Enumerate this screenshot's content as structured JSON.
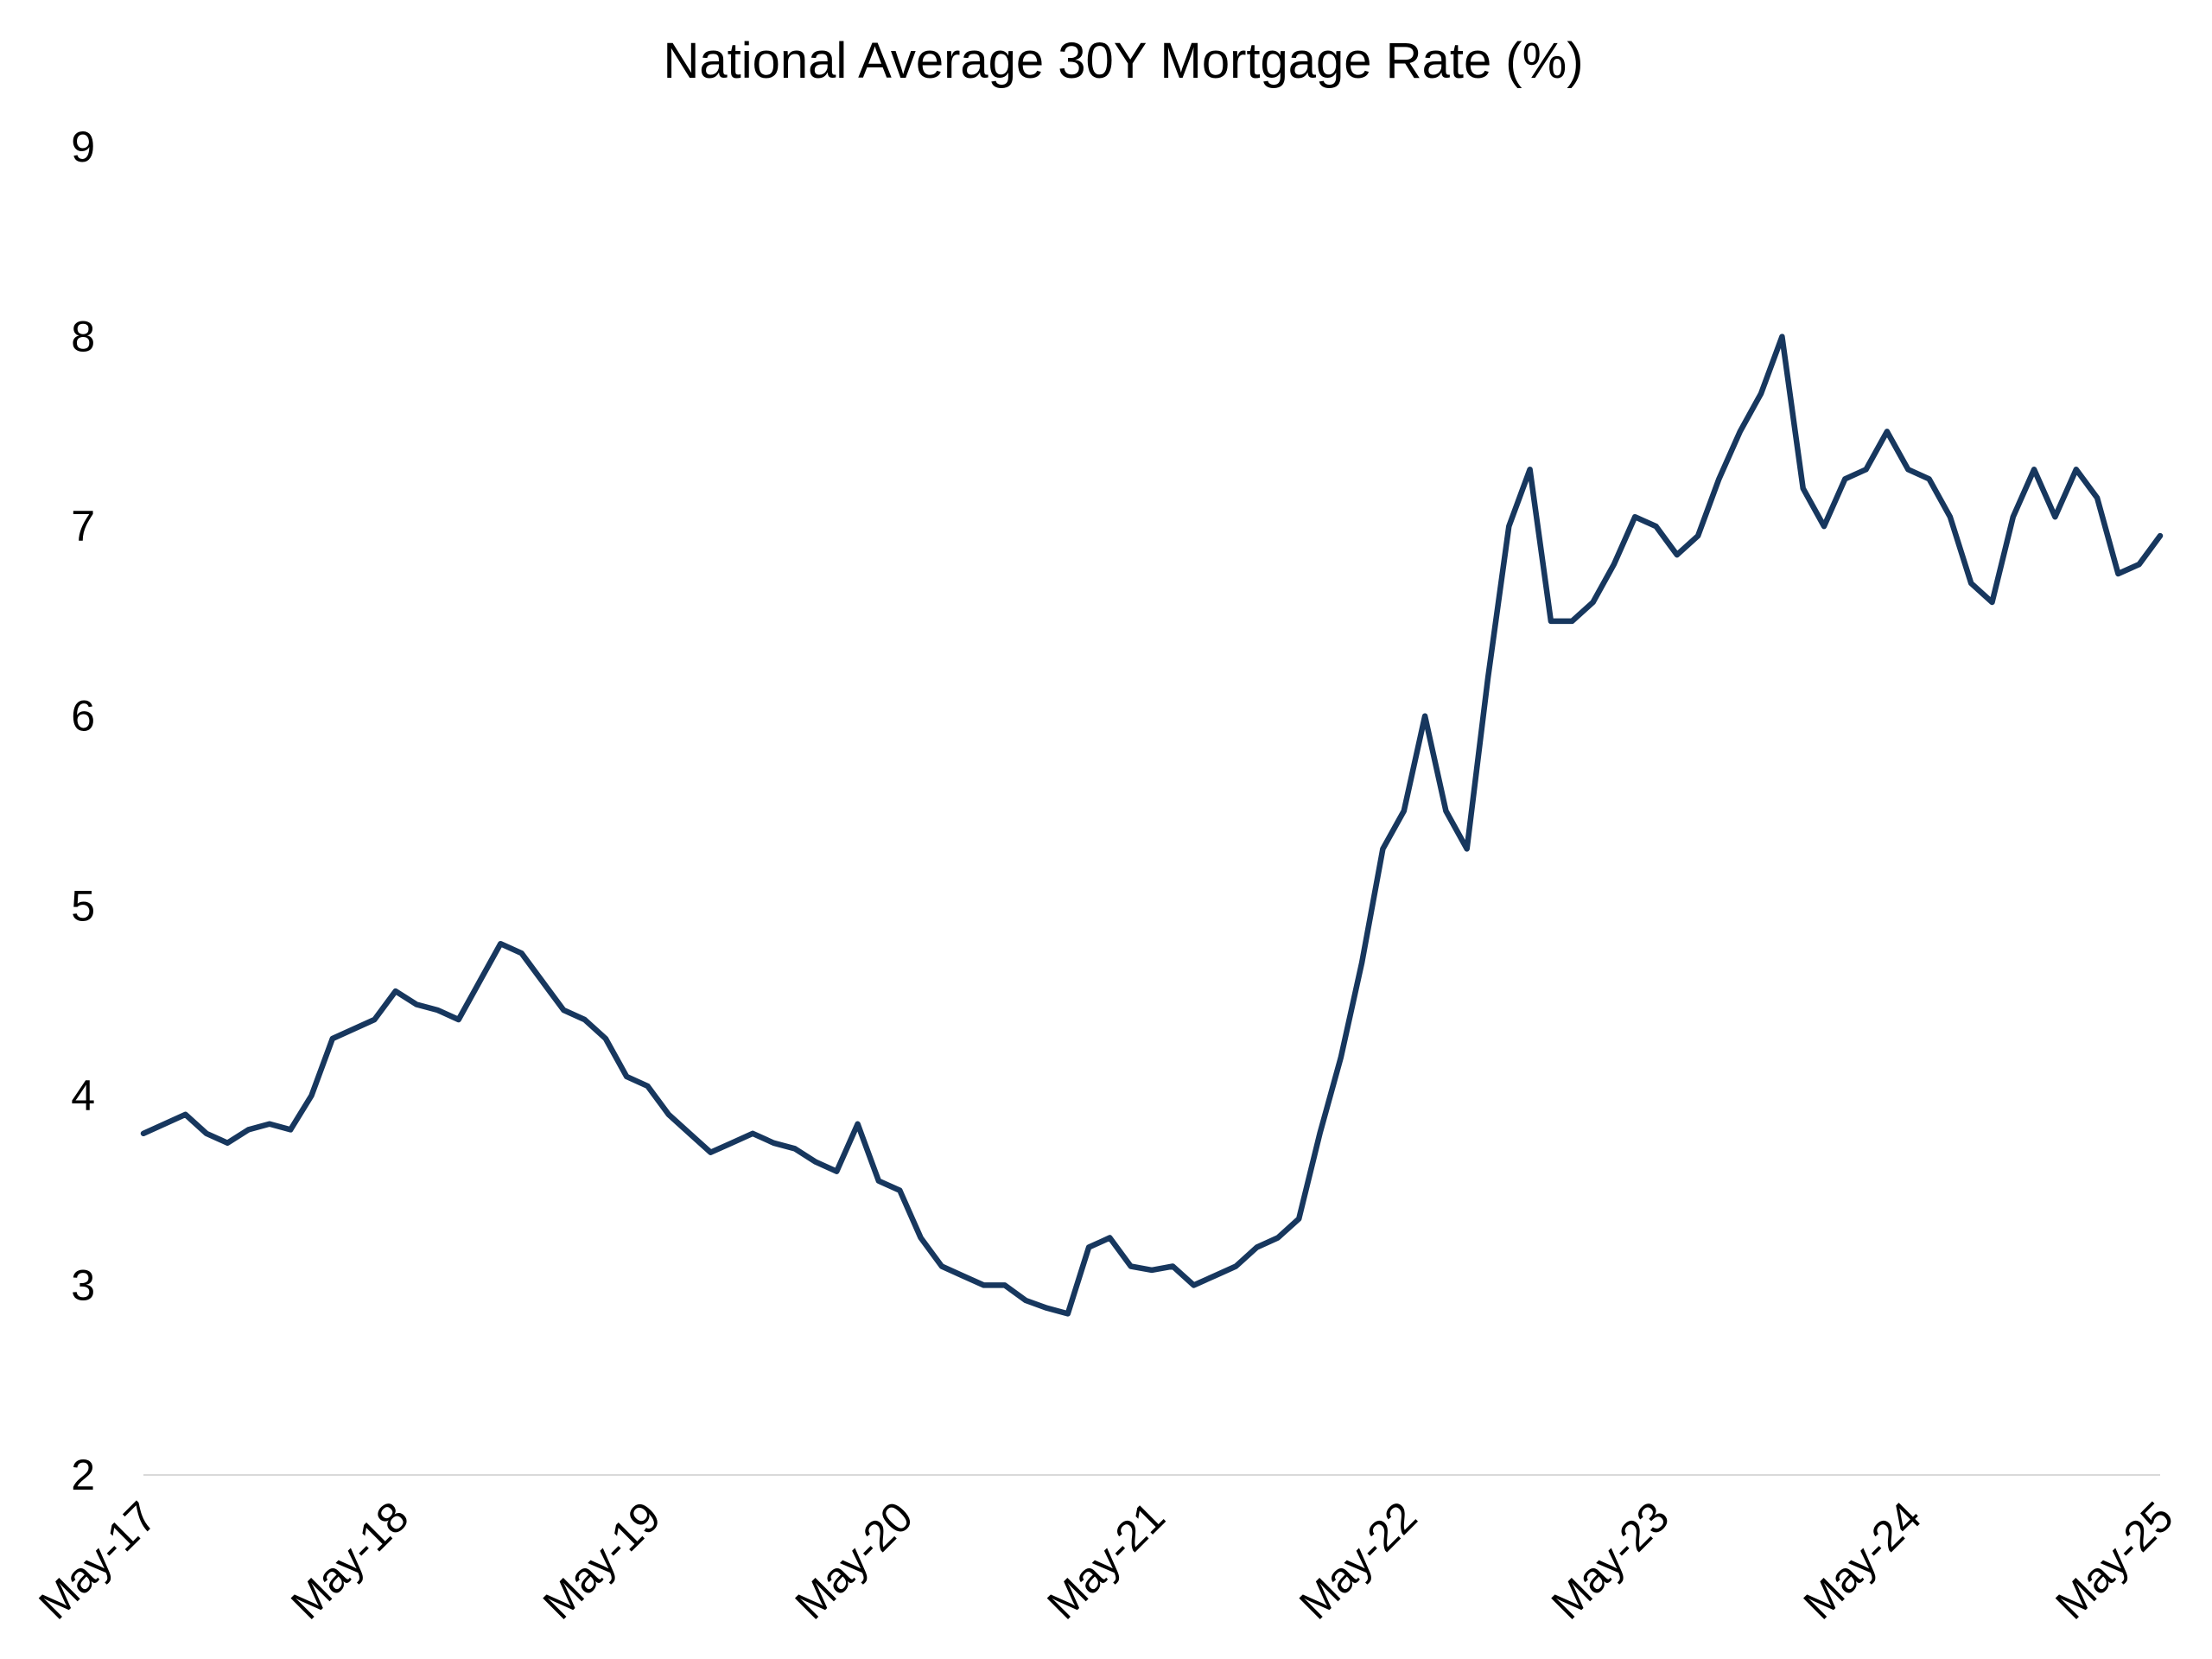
{
  "chart_data": {
    "type": "line",
    "title": "National Average 30Y Mortgage Rate (%)",
    "xlabel": "",
    "ylabel": "",
    "ylim": [
      2,
      9
    ],
    "yticks": [
      2,
      3,
      4,
      5,
      6,
      7,
      8,
      9
    ],
    "xlim": [
      "2017-05",
      "2025-05"
    ],
    "xticks": [
      "May-17",
      "May-18",
      "May-19",
      "May-20",
      "May-21",
      "May-22",
      "May-23",
      "May-24",
      "May-25"
    ],
    "grid": false,
    "legend": "none",
    "line_color": "#17375e",
    "series": [
      {
        "x": [
          "2017-05",
          "2017-06",
          "2017-07",
          "2017-08",
          "2017-09",
          "2017-10",
          "2017-11",
          "2017-12",
          "2018-01",
          "2018-02",
          "2018-03",
          "2018-04",
          "2018-05",
          "2018-06",
          "2018-07",
          "2018-08",
          "2018-09",
          "2018-10",
          "2018-11",
          "2018-12",
          "2019-01",
          "2019-02",
          "2019-03",
          "2019-04",
          "2019-05",
          "2019-06",
          "2019-07",
          "2019-08",
          "2019-09",
          "2019-10",
          "2019-11",
          "2019-12",
          "2020-01",
          "2020-02",
          "2020-03",
          "2020-04",
          "2020-05",
          "2020-06",
          "2020-07",
          "2020-08",
          "2020-09",
          "2020-10",
          "2020-11",
          "2020-12",
          "2021-01",
          "2021-02",
          "2021-03",
          "2021-04",
          "2021-05",
          "2021-06",
          "2021-07",
          "2021-08",
          "2021-09",
          "2021-10",
          "2021-11",
          "2021-12",
          "2022-01",
          "2022-02",
          "2022-03",
          "2022-04",
          "2022-05",
          "2022-06",
          "2022-07",
          "2022-08",
          "2022-09",
          "2022-10",
          "2022-11",
          "2022-12",
          "2023-01",
          "2023-02",
          "2023-03",
          "2023-04",
          "2023-05",
          "2023-06",
          "2023-07",
          "2023-08",
          "2023-09",
          "2023-10",
          "2023-11",
          "2023-12",
          "2024-01",
          "2024-02",
          "2024-03",
          "2024-04",
          "2024-05",
          "2024-06",
          "2024-07",
          "2024-08",
          "2024-09",
          "2024-10",
          "2024-11",
          "2024-12",
          "2025-01",
          "2025-02",
          "2025-03",
          "2025-04",
          "2025-05"
        ],
        "values": [
          3.8,
          3.85,
          3.9,
          3.8,
          3.75,
          3.82,
          3.85,
          3.82,
          4.0,
          4.3,
          4.35,
          4.4,
          4.55,
          4.48,
          4.45,
          4.4,
          4.6,
          4.8,
          4.75,
          4.6,
          4.45,
          4.4,
          4.3,
          4.1,
          4.05,
          3.9,
          3.8,
          3.7,
          3.75,
          3.8,
          3.75,
          3.72,
          3.65,
          3.6,
          3.85,
          3.55,
          3.5,
          3.25,
          3.1,
          3.05,
          3.0,
          3.0,
          2.92,
          2.88,
          2.85,
          3.2,
          3.25,
          3.1,
          3.08,
          3.1,
          3.0,
          3.05,
          3.1,
          3.2,
          3.25,
          3.35,
          3.8,
          4.2,
          4.7,
          5.3,
          5.5,
          6.0,
          5.5,
          5.3,
          6.2,
          7.0,
          7.3,
          6.5,
          6.5,
          6.6,
          6.8,
          7.05,
          7.0,
          6.85,
          6.95,
          7.25,
          7.5,
          7.7,
          8.0,
          7.2,
          7.0,
          7.25,
          7.3,
          7.5,
          7.3,
          7.25,
          7.05,
          6.7,
          6.6,
          7.05,
          7.3,
          7.05,
          7.3,
          7.15,
          6.75,
          6.8,
          6.95
        ]
      }
    ]
  }
}
